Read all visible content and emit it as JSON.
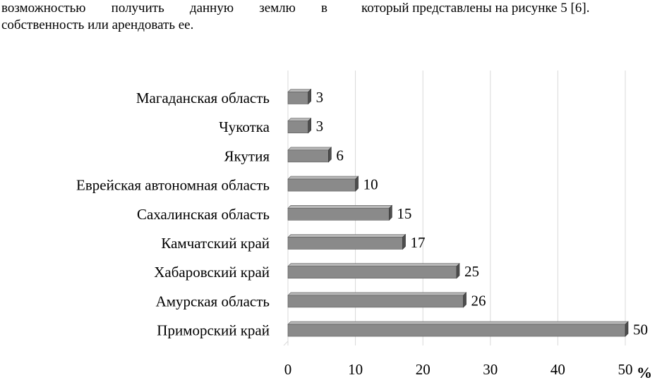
{
  "text": {
    "left_line1": "возможностью получить данную землю в",
    "left_line2": "собственность или арендовать ее.",
    "right_line1": "который представлены на рисунке 5 [6]."
  },
  "chart_data": {
    "type": "bar",
    "orientation": "horizontal",
    "categories": [
      "Магаданская область",
      "Чукотка",
      "Якутия",
      "Еврейская автономная область",
      "Сахалинская область",
      "Камчатский край",
      "Хабаровский край",
      "Амурская область",
      "Приморский край"
    ],
    "values": [
      3,
      3,
      6,
      10,
      15,
      17,
      25,
      26,
      50
    ],
    "xlim": [
      0,
      50
    ],
    "xticks": [
      0,
      10,
      20,
      30,
      40,
      50
    ],
    "xlabel": "%",
    "grid": true,
    "bar_color": "#8a8a8a",
    "bar_top_color": "#b8b8b8",
    "bar_side_color": "#4d4d4d"
  }
}
